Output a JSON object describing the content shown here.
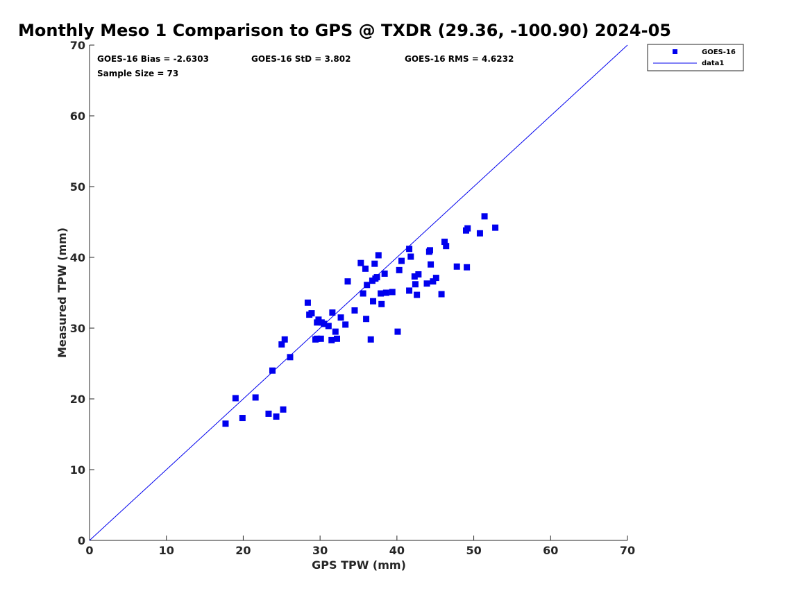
{
  "chart_data": {
    "type": "scatter",
    "title": "Monthly Meso 1 Comparison to GPS @ TXDR (29.36, -100.90) 2024-05",
    "xlabel": "GPS TPW (mm)",
    "ylabel": "Measured TPW (mm)",
    "xlim": [
      0,
      70
    ],
    "ylim": [
      0,
      70
    ],
    "xticks": [
      "0",
      "10",
      "20",
      "30",
      "40",
      "50",
      "60",
      "70"
    ],
    "yticks": [
      "0",
      "10",
      "20",
      "30",
      "40",
      "50",
      "60",
      "70"
    ],
    "grid": false,
    "legend_position": "top-right",
    "annotations": {
      "bias": "GOES-16 Bias = -2.6303",
      "std": "GOES-16 StD = 3.802",
      "rms": "GOES-16 RMS = 4.6232",
      "sample": "Sample Size = 73"
    },
    "series": [
      {
        "name": "GOES-16",
        "kind": "scatter",
        "color": "#0000ee",
        "marker": "square",
        "points": [
          [
            17.7,
            16.5
          ],
          [
            19.0,
            20.1
          ],
          [
            19.9,
            17.3
          ],
          [
            21.6,
            20.2
          ],
          [
            23.3,
            17.9
          ],
          [
            23.8,
            24.0
          ],
          [
            24.3,
            17.5
          ],
          [
            25.0,
            27.7
          ],
          [
            25.2,
            18.5
          ],
          [
            25.4,
            28.4
          ],
          [
            26.1,
            25.9
          ],
          [
            28.4,
            33.6
          ],
          [
            28.6,
            31.9
          ],
          [
            28.9,
            32.1
          ],
          [
            29.4,
            28.4
          ],
          [
            29.6,
            28.5
          ],
          [
            29.6,
            30.8
          ],
          [
            29.8,
            31.2
          ],
          [
            30.1,
            28.5
          ],
          [
            30.2,
            30.8
          ],
          [
            30.5,
            30.6
          ],
          [
            31.1,
            30.3
          ],
          [
            31.5,
            28.3
          ],
          [
            31.6,
            32.2
          ],
          [
            32.0,
            29.5
          ],
          [
            32.2,
            28.5
          ],
          [
            32.7,
            31.5
          ],
          [
            33.3,
            30.5
          ],
          [
            33.6,
            36.6
          ],
          [
            34.5,
            32.5
          ],
          [
            35.3,
            39.2
          ],
          [
            35.6,
            34.9
          ],
          [
            35.9,
            38.4
          ],
          [
            36.0,
            31.3
          ],
          [
            36.1,
            36.1
          ],
          [
            36.6,
            28.4
          ],
          [
            36.8,
            36.7
          ],
          [
            36.9,
            33.8
          ],
          [
            37.1,
            39.1
          ],
          [
            37.4,
            37.2
          ],
          [
            37.6,
            40.3
          ],
          [
            37.9,
            34.9
          ],
          [
            38.0,
            33.4
          ],
          [
            38.4,
            37.7
          ],
          [
            38.6,
            35.0
          ],
          [
            39.4,
            35.1
          ],
          [
            40.1,
            29.5
          ],
          [
            40.3,
            38.2
          ],
          [
            40.6,
            39.5
          ],
          [
            41.6,
            35.3
          ],
          [
            41.6,
            41.2
          ],
          [
            41.8,
            40.1
          ],
          [
            42.3,
            37.3
          ],
          [
            42.4,
            36.2
          ],
          [
            42.6,
            34.7
          ],
          [
            42.8,
            37.6
          ],
          [
            43.9,
            36.3
          ],
          [
            44.2,
            40.8
          ],
          [
            44.3,
            41.0
          ],
          [
            44.4,
            39.0
          ],
          [
            44.7,
            36.6
          ],
          [
            45.1,
            37.1
          ],
          [
            45.8,
            34.8
          ],
          [
            46.2,
            42.2
          ],
          [
            46.4,
            41.6
          ],
          [
            47.8,
            38.7
          ],
          [
            49.0,
            43.8
          ],
          [
            49.1,
            38.6
          ],
          [
            49.2,
            44.1
          ],
          [
            50.8,
            43.4
          ],
          [
            51.4,
            45.8
          ],
          [
            52.8,
            44.2
          ],
          [
            37.2,
            37.0
          ]
        ]
      },
      {
        "name": "data1",
        "kind": "line",
        "color": "#0000ee",
        "points": [
          [
            0,
            0
          ],
          [
            70,
            70
          ]
        ]
      }
    ]
  }
}
